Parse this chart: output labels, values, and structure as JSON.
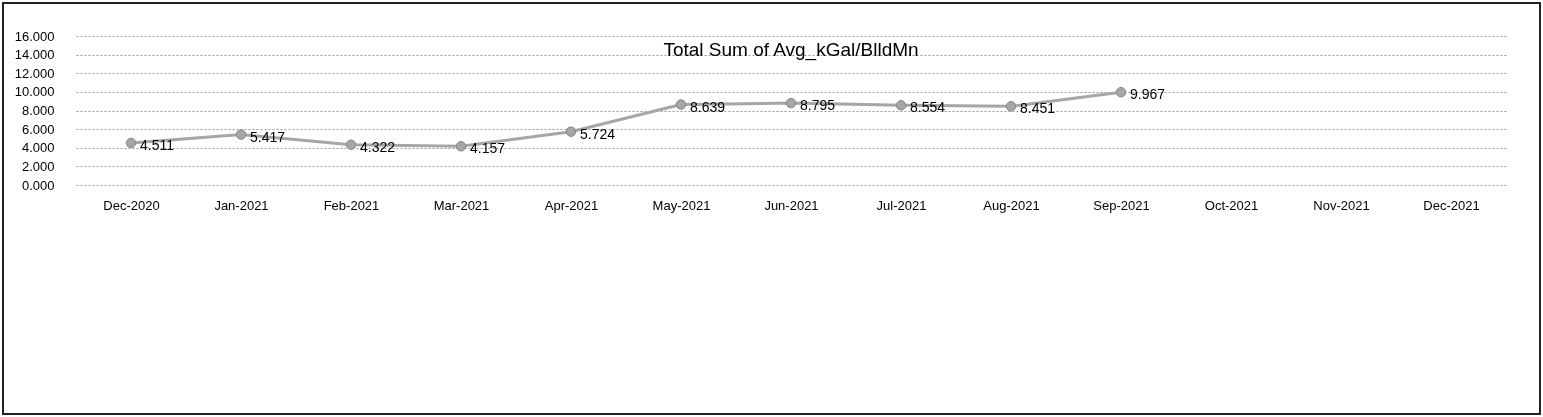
{
  "chart_data": {
    "type": "line",
    "title": "Total Sum of Avg_kGal/BlldMn",
    "categories": [
      "Dec-2020",
      "Jan-2021",
      "Feb-2021",
      "Mar-2021",
      "Apr-2021",
      "May-2021",
      "Jun-2021",
      "Jul-2021",
      "Aug-2021",
      "Sep-2021",
      "Oct-2021",
      "Nov-2021",
      "Dec-2021"
    ],
    "series": [
      {
        "color": "#a6a6a6",
        "values": [
          4.511,
          5.417,
          4.322,
          4.157,
          5.724,
          8.639,
          8.795,
          8.554,
          8.451,
          9.967,
          null,
          null,
          null
        ]
      }
    ],
    "ylim": [
      0,
      16
    ],
    "yticks": [
      {
        "value": 0,
        "label": "0.000"
      },
      {
        "value": 2,
        "label": "2.000"
      },
      {
        "value": 4,
        "label": "4.000"
      },
      {
        "value": 6,
        "label": "6.000"
      },
      {
        "value": 8,
        "label": "8.000"
      },
      {
        "value": 10,
        "label": "10.000"
      },
      {
        "value": 12,
        "label": "12.000"
      },
      {
        "value": 14,
        "label": "14.000"
      },
      {
        "value": 16,
        "label": "16.000"
      }
    ],
    "grid": "y",
    "marker": "circle",
    "line_style": "solid",
    "data_labels": true
  }
}
